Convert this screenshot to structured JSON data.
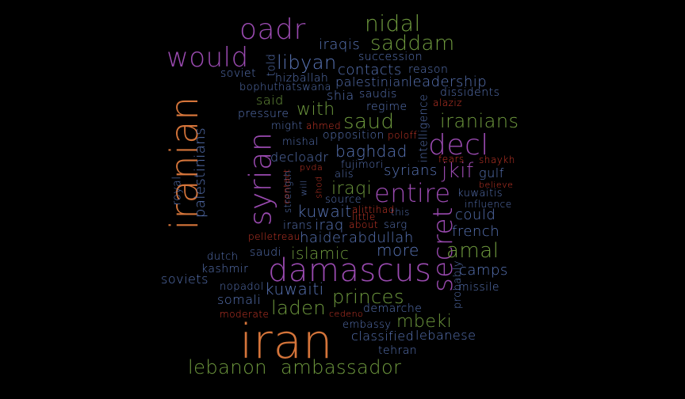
{
  "words": [
    {
      "text": "iran",
      "color": "#d4743a"
    },
    {
      "text": "iranian",
      "color": "#d4743a"
    },
    {
      "text": "damascus",
      "color": "#9a4ab0"
    },
    {
      "text": "oadr",
      "color": "#9a4ab0"
    },
    {
      "text": "would",
      "color": "#9a4ab0"
    },
    {
      "text": "syrian",
      "color": "#9a4ab0"
    },
    {
      "text": "secret",
      "color": "#9a4ab0"
    },
    {
      "text": "entire",
      "color": "#9a4ab0"
    },
    {
      "text": "decl",
      "color": "#9a4ab0"
    },
    {
      "text": "nidal",
      "color": "#6f9a3e"
    },
    {
      "text": "saddam",
      "color": "#6f9a3e"
    },
    {
      "text": "saud",
      "color": "#6f9a3e"
    },
    {
      "text": "iranians",
      "color": "#6f9a3e"
    },
    {
      "text": "lebanon",
      "color": "#6f9a3e"
    },
    {
      "text": "ambassador",
      "color": "#6f9a3e"
    },
    {
      "text": "amal",
      "color": "#6f9a3e"
    },
    {
      "text": "princes",
      "color": "#6f9a3e"
    },
    {
      "text": "mbeki",
      "color": "#6f9a3e"
    },
    {
      "text": "laden",
      "color": "#6f9a3e"
    },
    {
      "text": "iraqi",
      "color": "#6f9a3e"
    },
    {
      "text": "islamic",
      "color": "#6f9a3e"
    },
    {
      "text": "said",
      "color": "#6f9a3e"
    },
    {
      "text": "with",
      "color": "#6f9a3e"
    },
    {
      "text": "libyan",
      "color": "#5a76b8"
    },
    {
      "text": "iraqis",
      "color": "#5a76b8"
    },
    {
      "text": "succession",
      "color": "#5a76b8"
    },
    {
      "text": "contacts",
      "color": "#5a76b8"
    },
    {
      "text": "reason",
      "color": "#5a76b8"
    },
    {
      "text": "soviet",
      "color": "#5a76b8"
    },
    {
      "text": "told",
      "color": "#5a76b8"
    },
    {
      "text": "hizballah",
      "color": "#5a76b8"
    },
    {
      "text": "palestinian",
      "color": "#5a76b8"
    },
    {
      "text": "leadership",
      "color": "#5a76b8"
    },
    {
      "text": "bophuthatswana",
      "color": "#5a76b8"
    },
    {
      "text": "shia",
      "color": "#5a76b8"
    },
    {
      "text": "saudis",
      "color": "#5a76b8"
    },
    {
      "text": "dissidents",
      "color": "#5a76b8"
    },
    {
      "text": "regime",
      "color": "#5a76b8"
    },
    {
      "text": "pressure",
      "color": "#5a76b8"
    },
    {
      "text": "intelligence",
      "color": "#5a76b8"
    },
    {
      "text": "might",
      "color": "#5a76b8"
    },
    {
      "text": "mishal",
      "color": "#5a76b8"
    },
    {
      "text": "opposition",
      "color": "#5a76b8"
    },
    {
      "text": "baghdad",
      "color": "#5a76b8"
    },
    {
      "text": "palestinians",
      "color": "#5a76b8"
    },
    {
      "text": "decloadr",
      "color": "#5a76b8"
    },
    {
      "text": "fujimori",
      "color": "#5a76b8"
    },
    {
      "text": "syrians",
      "color": "#5a76b8"
    },
    {
      "text": "jkif",
      "color": "#9a4ab0"
    },
    {
      "text": "gulf",
      "color": "#5a76b8"
    },
    {
      "text": "alis",
      "color": "#5a76b8"
    },
    {
      "text": "royal",
      "color": "#5a76b8"
    },
    {
      "text": "strength",
      "color": "#5a76b8"
    },
    {
      "text": "will",
      "color": "#5a76b8"
    },
    {
      "text": "kuwaitis",
      "color": "#5a76b8"
    },
    {
      "text": "source",
      "color": "#5a76b8"
    },
    {
      "text": "influence",
      "color": "#5a76b8"
    },
    {
      "text": "kuwait",
      "color": "#5a76b8"
    },
    {
      "text": "this",
      "color": "#5a76b8"
    },
    {
      "text": "could",
      "color": "#5a76b8"
    },
    {
      "text": "irans",
      "color": "#5a76b8"
    },
    {
      "text": "iraq",
      "color": "#5a76b8"
    },
    {
      "text": "sarg",
      "color": "#5a76b8"
    },
    {
      "text": "french",
      "color": "#5a76b8"
    },
    {
      "text": "haider",
      "color": "#5a76b8"
    },
    {
      "text": "abdullah",
      "color": "#5a76b8"
    },
    {
      "text": "saudi",
      "color": "#5a76b8"
    },
    {
      "text": "more",
      "color": "#5a76b8"
    },
    {
      "text": "dutch",
      "color": "#5a76b8"
    },
    {
      "text": "kashmir",
      "color": "#5a76b8"
    },
    {
      "text": "probably",
      "color": "#5a76b8"
    },
    {
      "text": "camps",
      "color": "#5a76b8"
    },
    {
      "text": "soviets",
      "color": "#5a76b8"
    },
    {
      "text": "nopadol",
      "color": "#5a76b8"
    },
    {
      "text": "kuwaiti",
      "color": "#5a76b8"
    },
    {
      "text": "missile",
      "color": "#5a76b8"
    },
    {
      "text": "somali",
      "color": "#5a76b8"
    },
    {
      "text": "demarche",
      "color": "#5a76b8"
    },
    {
      "text": "embassy",
      "color": "#5a76b8"
    },
    {
      "text": "classified",
      "color": "#5a76b8"
    },
    {
      "text": "lebanese",
      "color": "#5a76b8"
    },
    {
      "text": "tehran",
      "color": "#5a76b8"
    },
    {
      "text": "alaziz",
      "color": "#d13a2a"
    },
    {
      "text": "ahmed",
      "color": "#d13a2a"
    },
    {
      "text": "poloff",
      "color": "#d13a2a"
    },
    {
      "text": "fears",
      "color": "#d13a2a"
    },
    {
      "text": "shaykh",
      "color": "#d13a2a"
    },
    {
      "text": "pvda",
      "color": "#d13a2a"
    },
    {
      "text": "contact",
      "color": "#d13a2a"
    },
    {
      "text": "shod",
      "color": "#d13a2a"
    },
    {
      "text": "believe",
      "color": "#d13a2a"
    },
    {
      "text": "alittihad",
      "color": "#d13a2a"
    },
    {
      "text": "little",
      "color": "#d13a2a"
    },
    {
      "text": "about",
      "color": "#d13a2a"
    },
    {
      "text": "pelletreau",
      "color": "#d13a2a"
    },
    {
      "text": "moderate",
      "color": "#d13a2a"
    },
    {
      "text": "cedeno",
      "color": "#d13a2a"
    }
  ]
}
